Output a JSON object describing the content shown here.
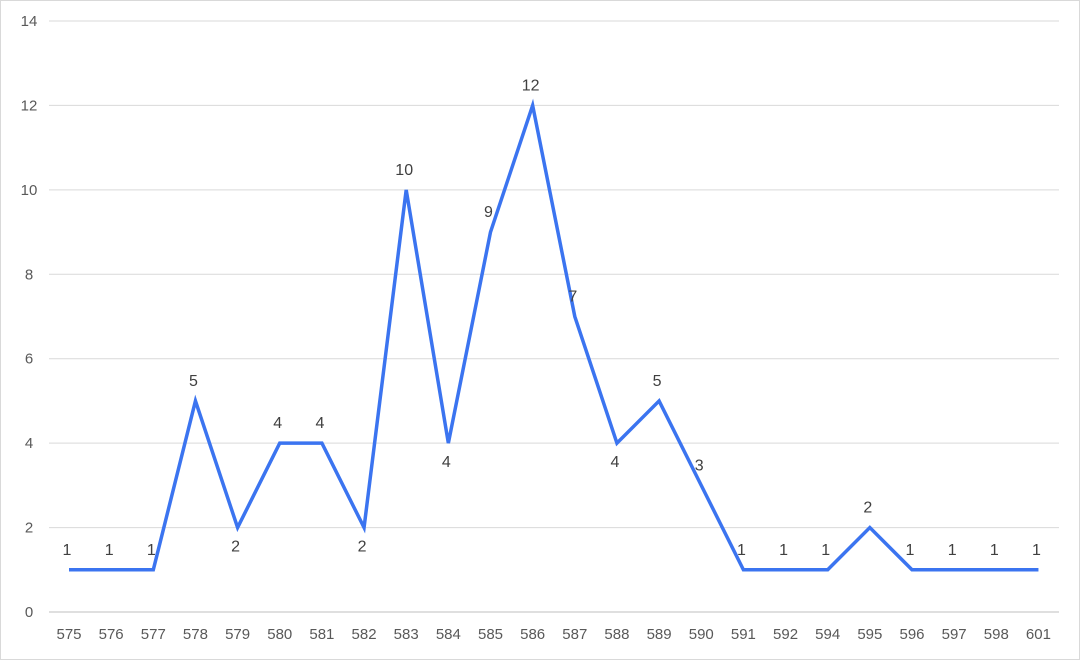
{
  "chart_data": {
    "type": "line",
    "title": "",
    "xlabel": "",
    "ylabel": "",
    "categories": [
      "575",
      "576",
      "577",
      "578",
      "579",
      "580",
      "581",
      "582",
      "583",
      "584",
      "585",
      "586",
      "587",
      "588",
      "589",
      "590",
      "591",
      "592",
      "594",
      "595",
      "596",
      "597",
      "598",
      "601"
    ],
    "series": [
      {
        "values": [
          1,
          1,
          1,
          5,
          2,
          4,
          4,
          2,
          10,
          4,
          9,
          12,
          7,
          4,
          5,
          3,
          1,
          1,
          1,
          2,
          1,
          1,
          1,
          1
        ],
        "color": "#3B74F0",
        "data_labels": true
      }
    ],
    "ylim": [
      0,
      14
    ],
    "yticks": [
      0,
      2,
      4,
      6,
      8,
      10,
      12,
      14
    ],
    "grid": "horizontal",
    "legend": "none"
  }
}
